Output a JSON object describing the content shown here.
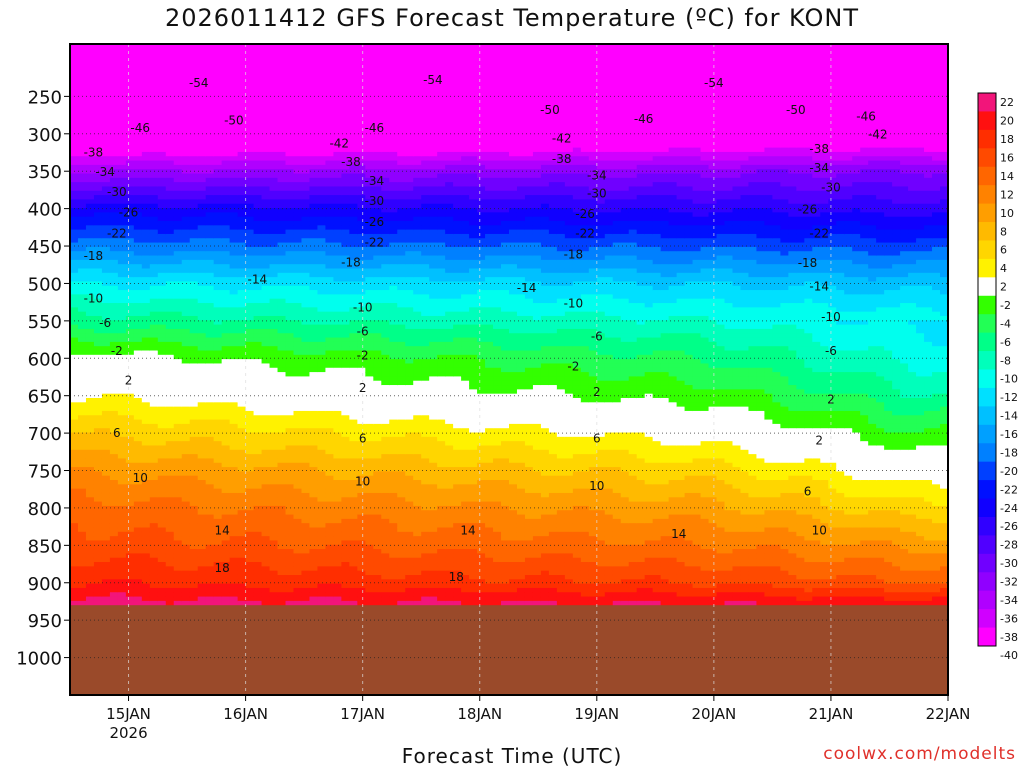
{
  "chart_data": {
    "type": "heatmap",
    "title": "2026011412 GFS Forecast Temperature (ºC) for KONT",
    "xlabel": "Forecast Time (UTC)",
    "ylabel": "",
    "credit": "coolwx.com/modelts",
    "y_axis": {
      "scale": "linear pressure (hPa), inverted",
      "range": [
        180,
        1050
      ],
      "ticks": [
        250,
        300,
        350,
        400,
        450,
        500,
        550,
        600,
        650,
        700,
        750,
        800,
        850,
        900,
        950,
        1000
      ]
    },
    "x_axis": {
      "range_days": [
        "14JAN 12Z",
        "22JAN 00Z"
      ],
      "ticks": [
        "15JAN",
        "16JAN",
        "17JAN",
        "18JAN",
        "19JAN",
        "20JAN",
        "21JAN",
        "22JAN"
      ],
      "year_label": "2026"
    },
    "colorbar": {
      "labels": [
        22,
        20,
        18,
        16,
        14,
        12,
        10,
        8,
        6,
        4,
        2,
        -2,
        -4,
        -6,
        -8,
        -10,
        -12,
        -14,
        -16,
        -18,
        -20,
        -22,
        -24,
        -26,
        -28,
        -30,
        -32,
        -34,
        -36,
        -38,
        -40
      ],
      "colors": [
        "#f2157a",
        "#ff1010",
        "#ff2e00",
        "#ff4a00",
        "#ff6600",
        "#ff8200",
        "#ff9e00",
        "#ffba00",
        "#ffd600",
        "#fff200",
        "#ffffff",
        "#33ff00",
        "#22ff55",
        "#00ff88",
        "#00ffbb",
        "#00ffee",
        "#00e0ff",
        "#00c0ff",
        "#00a0ff",
        "#0080ff",
        "#0040ff",
        "#0010ff",
        "#1000ff",
        "#3000ff",
        "#5000ff",
        "#7000ff",
        "#9000ff",
        "#b000ff",
        "#d000ff",
        "#ff00ff"
      ]
    },
    "temperature_profile": {
      "note": "temperature (ºC) vs pressure (hPa), approximate column",
      "pressure": [
        200,
        250,
        300,
        350,
        400,
        450,
        500,
        550,
        600,
        650,
        700,
        750,
        800,
        850,
        900,
        930
      ],
      "temp_start": [
        -55,
        -52,
        -44,
        -34,
        -25,
        -19,
        -12,
        -7,
        -1,
        2,
        6,
        10,
        13,
        15,
        18,
        21
      ],
      "temp_end": [
        -55,
        -50,
        -42,
        -32,
        -27,
        -21,
        -15,
        -11,
        -8,
        -5,
        -1,
        3,
        7,
        11,
        15,
        20
      ]
    },
    "contour_labels": [
      {
        "t": "-54",
        "d": 15.6,
        "p": 232
      },
      {
        "t": "-54",
        "d": 17.6,
        "p": 228
      },
      {
        "t": "-54",
        "d": 20.0,
        "p": 232
      },
      {
        "t": "-50",
        "d": 15.9,
        "p": 282
      },
      {
        "t": "-50",
        "d": 18.6,
        "p": 268
      },
      {
        "t": "-50",
        "d": 20.7,
        "p": 268
      },
      {
        "t": "-46",
        "d": 15.1,
        "p": 292
      },
      {
        "t": "-46",
        "d": 17.1,
        "p": 292
      },
      {
        "t": "-46",
        "d": 19.4,
        "p": 280
      },
      {
        "t": "-46",
        "d": 21.3,
        "p": 277
      },
      {
        "t": "-42",
        "d": 16.8,
        "p": 313
      },
      {
        "t": "-42",
        "d": 18.7,
        "p": 306
      },
      {
        "t": "-42",
        "d": 21.4,
        "p": 301
      },
      {
        "t": "-38",
        "d": 14.7,
        "p": 325
      },
      {
        "t": "-38",
        "d": 16.9,
        "p": 338
      },
      {
        "t": "-38",
        "d": 18.7,
        "p": 334
      },
      {
        "t": "-38",
        "d": 20.9,
        "p": 320
      },
      {
        "t": "-34",
        "d": 14.8,
        "p": 351
      },
      {
        "t": "-34",
        "d": 17.1,
        "p": 363
      },
      {
        "t": "-34",
        "d": 19.0,
        "p": 356
      },
      {
        "t": "-34",
        "d": 20.9,
        "p": 346
      },
      {
        "t": "-30",
        "d": 14.9,
        "p": 378
      },
      {
        "t": "-30",
        "d": 17.1,
        "p": 390
      },
      {
        "t": "-30",
        "d": 19.0,
        "p": 380
      },
      {
        "t": "-30",
        "d": 21.0,
        "p": 372
      },
      {
        "t": "-26",
        "d": 15.0,
        "p": 405
      },
      {
        "t": "-26",
        "d": 17.1,
        "p": 418
      },
      {
        "t": "-26",
        "d": 18.9,
        "p": 407
      },
      {
        "t": "-26",
        "d": 20.8,
        "p": 401
      },
      {
        "t": "-22",
        "d": 14.9,
        "p": 433
      },
      {
        "t": "-22",
        "d": 17.1,
        "p": 445
      },
      {
        "t": "-22",
        "d": 18.9,
        "p": 433
      },
      {
        "t": "-22",
        "d": 20.9,
        "p": 433
      },
      {
        "t": "-18",
        "d": 14.7,
        "p": 463
      },
      {
        "t": "-18",
        "d": 16.9,
        "p": 472
      },
      {
        "t": "-18",
        "d": 18.8,
        "p": 461
      },
      {
        "t": "-18",
        "d": 20.8,
        "p": 473
      },
      {
        "t": "-14",
        "d": 16.1,
        "p": 495
      },
      {
        "t": "-14",
        "d": 18.4,
        "p": 506
      },
      {
        "t": "-14",
        "d": 20.9,
        "p": 504
      },
      {
        "t": "-10",
        "d": 14.7,
        "p": 520
      },
      {
        "t": "-10",
        "d": 17.0,
        "p": 532
      },
      {
        "t": "-10",
        "d": 18.8,
        "p": 527
      },
      {
        "t": "-10",
        "d": 21.0,
        "p": 545
      },
      {
        "t": "-6",
        "d": 14.8,
        "p": 553
      },
      {
        "t": "-6",
        "d": 17.0,
        "p": 564
      },
      {
        "t": "-6",
        "d": 19.0,
        "p": 571
      },
      {
        "t": "-6",
        "d": 21.0,
        "p": 590
      },
      {
        "t": "-2",
        "d": 14.9,
        "p": 590
      },
      {
        "t": "-2",
        "d": 17.0,
        "p": 596
      },
      {
        "t": "-2",
        "d": 18.8,
        "p": 611
      },
      {
        "t": "2",
        "d": 15.0,
        "p": 630
      },
      {
        "t": "2",
        "d": 17.0,
        "p": 640
      },
      {
        "t": "2",
        "d": 19.0,
        "p": 645
      },
      {
        "t": "2",
        "d": 21.0,
        "p": 655
      },
      {
        "t": "2",
        "d": 20.9,
        "p": 710
      },
      {
        "t": "6",
        "d": 14.9,
        "p": 700
      },
      {
        "t": "6",
        "d": 17.0,
        "p": 707
      },
      {
        "t": "6",
        "d": 19.0,
        "p": 707
      },
      {
        "t": "6",
        "d": 20.8,
        "p": 778
      },
      {
        "t": "10",
        "d": 15.1,
        "p": 760
      },
      {
        "t": "10",
        "d": 17.0,
        "p": 765
      },
      {
        "t": "10",
        "d": 19.0,
        "p": 771
      },
      {
        "t": "10",
        "d": 20.9,
        "p": 830
      },
      {
        "t": "14",
        "d": 15.8,
        "p": 830
      },
      {
        "t": "14",
        "d": 17.9,
        "p": 830
      },
      {
        "t": "14",
        "d": 19.7,
        "p": 835
      },
      {
        "t": "18",
        "d": 15.8,
        "p": 880
      },
      {
        "t": "18",
        "d": 17.8,
        "p": 892
      }
    ],
    "ground_level_hpa": 930,
    "ground_color": "#9a4a2a"
  }
}
